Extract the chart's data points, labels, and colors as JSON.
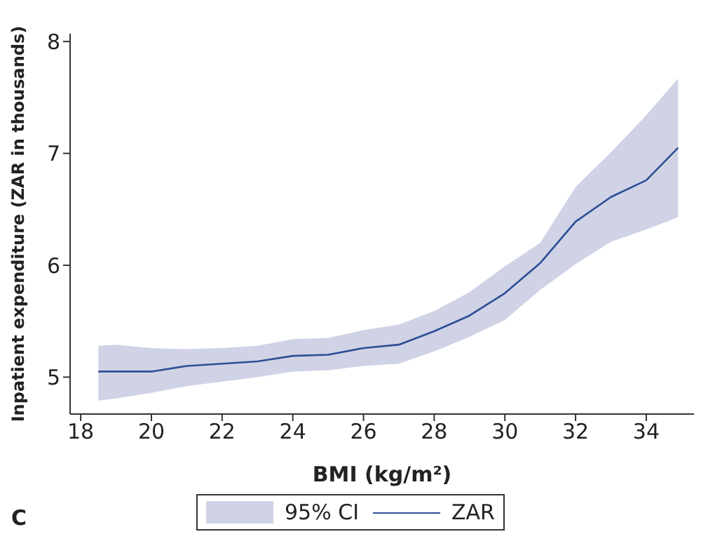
{
  "chart_data": {
    "type": "line",
    "xlabel": "BMI (kg/m²)",
    "ylabel": "Inpatient expenditure (ZAR in thousands)",
    "x": [
      18.5,
      19,
      20,
      21,
      22,
      23,
      24,
      25,
      26,
      27,
      28,
      29,
      30,
      31,
      32,
      33,
      34,
      34.9
    ],
    "series": [
      {
        "name": "ZAR",
        "color": "#2c4f95",
        "values": [
          5.05,
          5.05,
          5.05,
          5.1,
          5.12,
          5.14,
          5.19,
          5.2,
          5.26,
          5.29,
          5.41,
          5.55,
          5.75,
          6.02,
          6.39,
          6.61,
          6.76,
          7.05
        ],
        "lower": [
          4.79,
          4.81,
          4.86,
          4.92,
          4.96,
          5.0,
          5.05,
          5.06,
          5.1,
          5.12,
          5.23,
          5.36,
          5.51,
          5.78,
          6.01,
          6.21,
          6.32,
          6.43
        ],
        "upper": [
          5.28,
          5.29,
          5.26,
          5.25,
          5.26,
          5.28,
          5.34,
          5.35,
          5.42,
          5.47,
          5.59,
          5.76,
          5.99,
          6.2,
          6.7,
          7.01,
          7.34,
          7.67
        ]
      }
    ],
    "xlim": [
      17.7,
      35.35
    ],
    "xticks": [
      18,
      20,
      22,
      24,
      26,
      28,
      30,
      32,
      34
    ],
    "ylim": [
      4.67,
      8.07
    ],
    "yticks": [
      5,
      6,
      7,
      8
    ],
    "grid": false,
    "legend": "bottom",
    "marker": "none",
    "line_style": "solid",
    "annotations": [
      "95% CI",
      "C"
    ]
  }
}
